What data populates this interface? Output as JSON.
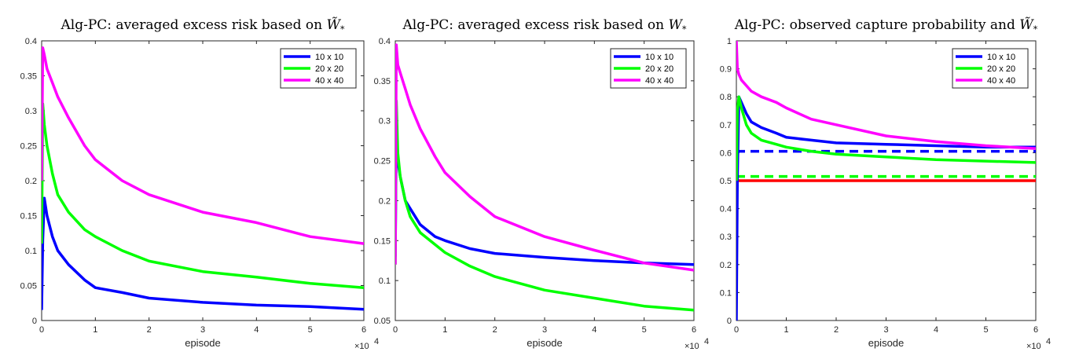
{
  "chart_data": [
    {
      "type": "line",
      "title": "Alg-PC: averaged excess risk based on",
      "title_symbol": "W̃",
      "title_subscript": "*",
      "xlabel": "episode",
      "x_multiplier": "×10",
      "x_exponent": "4",
      "xlim": [
        0,
        6
      ],
      "ylim": [
        0,
        0.4
      ],
      "xticks": [
        "0",
        "1",
        "2",
        "3",
        "4",
        "5",
        "6"
      ],
      "yticks": [
        "0",
        "0.05",
        "0.1",
        "0.15",
        "0.2",
        "0.25",
        "0.3",
        "0.35",
        "0.4"
      ],
      "legend": "top-right",
      "series": [
        {
          "name": "10 x 10",
          "color": "#0000ff",
          "dashed": false,
          "x": [
            0,
            0.02,
            0.05,
            0.1,
            0.2,
            0.3,
            0.5,
            0.8,
            1.0,
            1.5,
            2.0,
            3.0,
            4.0,
            5.0,
            6.0
          ],
          "y": [
            0.015,
            0.115,
            0.175,
            0.15,
            0.12,
            0.1,
            0.08,
            0.058,
            0.047,
            0.04,
            0.032,
            0.026,
            0.022,
            0.02,
            0.016
          ]
        },
        {
          "name": "20 x 20",
          "color": "#00ff00",
          "dashed": false,
          "x": [
            0,
            0.02,
            0.05,
            0.1,
            0.2,
            0.3,
            0.5,
            0.8,
            1.0,
            1.5,
            2.0,
            3.0,
            4.0,
            5.0,
            6.0
          ],
          "y": [
            0.11,
            0.31,
            0.28,
            0.25,
            0.21,
            0.18,
            0.155,
            0.13,
            0.12,
            0.1,
            0.085,
            0.07,
            0.062,
            0.053,
            0.047
          ]
        },
        {
          "name": "40 x 40",
          "color": "#ff00ff",
          "dashed": false,
          "x": [
            0,
            0.02,
            0.05,
            0.1,
            0.2,
            0.3,
            0.5,
            0.8,
            1.0,
            1.5,
            2.0,
            3.0,
            4.0,
            5.0,
            6.0
          ],
          "y": [
            0.2,
            0.39,
            0.38,
            0.36,
            0.34,
            0.32,
            0.29,
            0.25,
            0.23,
            0.2,
            0.18,
            0.155,
            0.14,
            0.12,
            0.11
          ]
        }
      ]
    },
    {
      "type": "line",
      "title": "Alg-PC: averaged excess risk based on",
      "title_symbol": "W",
      "title_subscript": "*",
      "xlabel": "episode",
      "x_multiplier": "×10",
      "x_exponent": "4",
      "xlim": [
        0,
        6
      ],
      "ylim": [
        0.05,
        0.4
      ],
      "xticks": [
        "0",
        "1",
        "2",
        "3",
        "4",
        "5",
        "6"
      ],
      "yticks": [
        "0.05",
        "0.1",
        "0.15",
        "0.2",
        "0.25",
        "0.3",
        "0.35",
        "0.4"
      ],
      "legend": "top-right",
      "series": [
        {
          "name": "10 x 10",
          "color": "#0000ff",
          "dashed": false,
          "x": [
            0,
            0.02,
            0.05,
            0.1,
            0.2,
            0.3,
            0.5,
            0.8,
            1.0,
            1.5,
            2.0,
            3.0,
            4.0,
            5.0,
            6.0
          ],
          "y": [
            0.13,
            0.28,
            0.25,
            0.23,
            0.2,
            0.19,
            0.17,
            0.155,
            0.15,
            0.14,
            0.134,
            0.129,
            0.125,
            0.122,
            0.12
          ]
        },
        {
          "name": "20 x 20",
          "color": "#00ff00",
          "dashed": false,
          "x": [
            0,
            0.02,
            0.05,
            0.1,
            0.2,
            0.3,
            0.5,
            0.8,
            1.0,
            1.5,
            2.0,
            3.0,
            4.0,
            5.0,
            6.0
          ],
          "y": [
            0.12,
            0.325,
            0.26,
            0.23,
            0.2,
            0.18,
            0.16,
            0.145,
            0.135,
            0.118,
            0.105,
            0.088,
            0.078,
            0.068,
            0.063
          ]
        },
        {
          "name": "40 x 40",
          "color": "#ff00ff",
          "dashed": false,
          "x": [
            0,
            0.02,
            0.05,
            0.1,
            0.2,
            0.3,
            0.5,
            0.8,
            1.0,
            1.5,
            2.0,
            3.0,
            4.0,
            5.0,
            6.0
          ],
          "y": [
            0.12,
            0.395,
            0.37,
            0.36,
            0.34,
            0.32,
            0.29,
            0.255,
            0.235,
            0.205,
            0.18,
            0.155,
            0.138,
            0.122,
            0.113
          ]
        }
      ]
    },
    {
      "type": "line",
      "title": "Alg-PC: observed capture probability and",
      "title_symbol": "W̃",
      "title_subscript": "*",
      "xlabel": "episode",
      "x_multiplier": "×10",
      "x_exponent": "4",
      "xlim": [
        0,
        6
      ],
      "ylim": [
        0,
        1
      ],
      "xticks": [
        "0",
        "1",
        "2",
        "3",
        "4",
        "5",
        "6"
      ],
      "yticks": [
        "0",
        "0.1",
        "0.2",
        "0.3",
        "0.4",
        "0.5",
        "0.6",
        "0.7",
        "0.8",
        "0.9",
        "1"
      ],
      "legend": "top-right",
      "series": [
        {
          "name": "10 x 10",
          "color": "#0000ff",
          "dashed": false,
          "x": [
            0,
            0.02,
            0.05,
            0.1,
            0.2,
            0.3,
            0.5,
            0.8,
            1.0,
            1.5,
            2.0,
            3.0,
            4.0,
            5.0,
            6.0
          ],
          "y": [
            0.0,
            0.5,
            0.8,
            0.78,
            0.74,
            0.71,
            0.69,
            0.67,
            0.655,
            0.645,
            0.635,
            0.63,
            0.625,
            0.62,
            0.62
          ]
        },
        {
          "name": "20 x 20",
          "color": "#00ff00",
          "dashed": false,
          "x": [
            0,
            0.02,
            0.05,
            0.1,
            0.2,
            0.3,
            0.5,
            0.8,
            1.0,
            1.5,
            2.0,
            3.0,
            4.0,
            5.0,
            6.0
          ],
          "y": [
            0.5,
            0.75,
            0.8,
            0.76,
            0.7,
            0.67,
            0.645,
            0.63,
            0.62,
            0.605,
            0.595,
            0.585,
            0.575,
            0.57,
            0.565
          ]
        },
        {
          "name": "40 x 40",
          "color": "#ff00ff",
          "dashed": false,
          "x": [
            0,
            0.02,
            0.05,
            0.1,
            0.2,
            0.3,
            0.5,
            0.8,
            1.0,
            1.5,
            2.0,
            3.0,
            4.0,
            5.0,
            6.0
          ],
          "y": [
            1.0,
            0.9,
            0.88,
            0.86,
            0.84,
            0.82,
            0.8,
            0.78,
            0.76,
            0.72,
            0.7,
            0.66,
            0.64,
            0.625,
            0.615
          ]
        }
      ],
      "reference_lines": [
        {
          "color": "#0000ff",
          "dashed": true,
          "y": 0.605
        },
        {
          "color": "#00ff00",
          "dashed": true,
          "y": 0.515
        },
        {
          "color": "#ff0000",
          "dashed": false,
          "y": 0.5
        }
      ]
    }
  ]
}
